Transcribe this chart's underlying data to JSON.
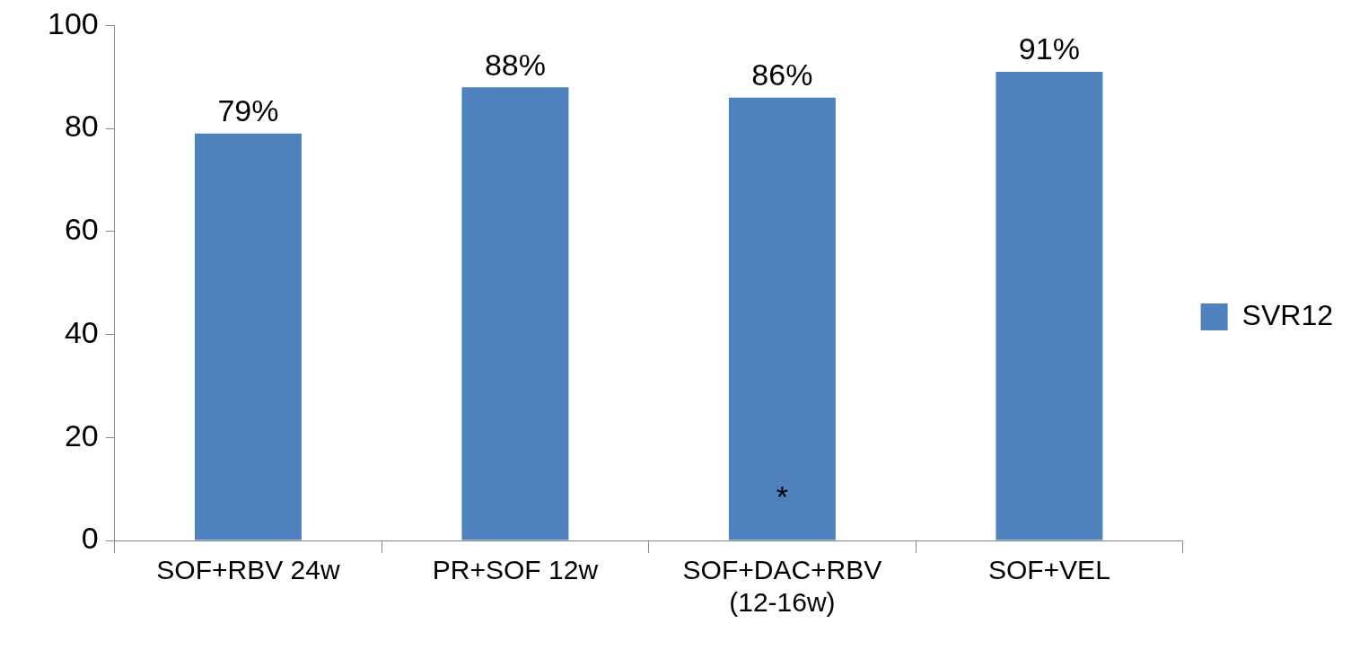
{
  "chart_data": {
    "type": "bar",
    "categories": [
      "SOF+RBV 24w",
      "PR+SOF 12w",
      "SOF+DAC+RBV (12-16w)",
      "SOF+VEL"
    ],
    "series": [
      {
        "name": "SVR12",
        "color": "#4f81bd",
        "values": [
          79,
          88,
          86,
          91
        ],
        "value_labels": [
          "79%",
          "88%",
          "86%",
          "91%"
        ]
      }
    ],
    "ylim": [
      0,
      100
    ],
    "yticks": [
      0,
      20,
      40,
      60,
      80,
      100
    ],
    "grid": false,
    "legend": "right",
    "annotations": [
      "*"
    ]
  }
}
